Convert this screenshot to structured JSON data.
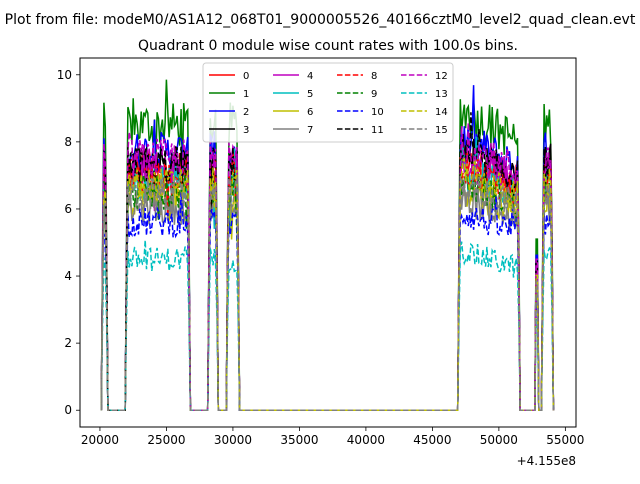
{
  "figure": {
    "suptitle": "Plot from file: modeM0/AS1A12_068T01_9000005526_40166cztM0_level2_quad_clean.evt",
    "title": "Quadrant 0 module wise count rates with 100.0s bins."
  },
  "chart_data": {
    "type": "line",
    "title": "Quadrant 0 module wise count rates with 100.0s bins.",
    "xlabel": "",
    "ylabel": "",
    "x_offset_label": "+4.155e8",
    "xlim": [
      18500,
      55800
    ],
    "ylim": [
      -0.5,
      10.5
    ],
    "xticks": [
      20000,
      25000,
      30000,
      35000,
      40000,
      45000,
      50000,
      55000
    ],
    "yticks": [
      0,
      2,
      4,
      6,
      8,
      10
    ],
    "grid": false,
    "legend_placement": "top-center",
    "legend_columns": 4,
    "series": [
      {
        "name": "0",
        "color": "#ff0000",
        "dash": "solid",
        "level": 7.2
      },
      {
        "name": "1",
        "color": "#008000",
        "dash": "solid",
        "level": 8.5
      },
      {
        "name": "2",
        "color": "#0000ff",
        "dash": "solid",
        "level": 7.7
      },
      {
        "name": "3",
        "color": "#000000",
        "dash": "solid",
        "level": 7.4
      },
      {
        "name": "4",
        "color": "#bf00bf",
        "dash": "solid",
        "level": 7.1
      },
      {
        "name": "5",
        "color": "#00bfbf",
        "dash": "solid",
        "level": 6.8
      },
      {
        "name": "6",
        "color": "#bfbf00",
        "dash": "solid",
        "level": 6.3
      },
      {
        "name": "7",
        "color": "#808080",
        "dash": "solid",
        "level": 6.0
      },
      {
        "name": "8",
        "color": "#ff0000",
        "dash": "dashed",
        "level": 6.9
      },
      {
        "name": "9",
        "color": "#008000",
        "dash": "dashed",
        "level": 6.5
      },
      {
        "name": "10",
        "color": "#0000ff",
        "dash": "dashed",
        "level": 5.6
      },
      {
        "name": "11",
        "color": "#000000",
        "dash": "dashed",
        "level": 7.3
      },
      {
        "name": "12",
        "color": "#bf00bf",
        "dash": "dashed",
        "level": 7.5
      },
      {
        "name": "13",
        "color": "#00bfbf",
        "dash": "dashed",
        "level": 4.5
      },
      {
        "name": "14",
        "color": "#bfbf00",
        "dash": "dashed",
        "level": 6.7
      },
      {
        "name": "15",
        "color": "#808080",
        "dash": "dashed",
        "level": 6.4
      }
    ],
    "active_segments": [
      [
        20100,
        20600
      ],
      [
        21900,
        26800
      ],
      [
        28100,
        28900
      ],
      [
        29500,
        30500
      ],
      [
        46900,
        51600
      ],
      [
        52700,
        53000
      ],
      [
        53200,
        54100
      ]
    ],
    "zero_segments": [
      [
        20600,
        21900
      ],
      [
        26800,
        28100
      ],
      [
        28900,
        29500
      ],
      [
        30500,
        46900
      ],
      [
        51600,
        52700
      ],
      [
        53000,
        53200
      ]
    ]
  }
}
